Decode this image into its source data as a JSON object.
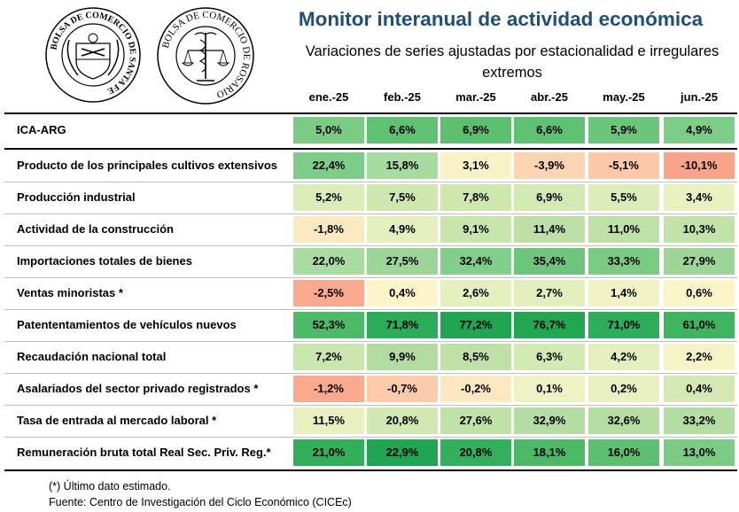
{
  "logos": {
    "santafe": {
      "ring_text": "BOLSA DE COMERCIO DE SANTA FE"
    },
    "rosario": {
      "ring_text": "BOLSA DE COMERCIO DE ROSARIO"
    }
  },
  "header": {
    "title": "Monitor interanual de actividad económica",
    "subtitle_line1": "Variaciones de series ajustadas por estacionalidad e irregulares",
    "subtitle_line2": "extremos"
  },
  "table": {
    "months": [
      "ene.-25",
      "feb.-25",
      "mar.-25",
      "abr.-25",
      "may.-25",
      "jun.-25"
    ],
    "rows": [
      {
        "label": "ICA-ARG",
        "values": [
          "5,0%",
          "6,6%",
          "6,9%",
          "6,6%",
          "5,9%",
          "4,9%"
        ],
        "colors": [
          "#7acc85",
          "#5fc172",
          "#5bbf6f",
          "#5fc172",
          "#6bc67b",
          "#7ccd87"
        ]
      },
      {
        "label": "Producto de los principales cultivos extensivos",
        "values": [
          "22,4%",
          "15,8%",
          "3,1%",
          "-3,9%",
          "-5,1%",
          "-10,1%"
        ],
        "colors": [
          "#7ccd87",
          "#a7dc9f",
          "#f7f3c6",
          "#fcd4b2",
          "#fcc8a8",
          "#f9a488"
        ]
      },
      {
        "label": "Producción industrial",
        "values": [
          "5,2%",
          "7,5%",
          "7,8%",
          "6,9%",
          "5,5%",
          "3,4%"
        ],
        "colors": [
          "#dcecb9",
          "#cde7ad",
          "#cde7ad",
          "#d2e9b1",
          "#dcecb9",
          "#eaf1c1"
        ]
      },
      {
        "label": "Actividad de la construcción",
        "values": [
          "-1,8%",
          "4,9%",
          "9,1%",
          "11,4%",
          "11,0%",
          "10,3%"
        ],
        "colors": [
          "#fde9c0",
          "#e3efbc",
          "#c8e5ab",
          "#bce0a6",
          "#bde1a7",
          "#c1e2a8"
        ]
      },
      {
        "label": "Importaciones totales de bienes",
        "values": [
          "22,0%",
          "27,5%",
          "32,4%",
          "35,4%",
          "33,3%",
          "27,9%"
        ],
        "colors": [
          "#a9dca0",
          "#9bd697",
          "#81cf8a",
          "#6dc67c",
          "#7acb84",
          "#9bd697"
        ]
      },
      {
        "label": "Ventas minoristas *",
        "values": [
          "-2,5%",
          "0,4%",
          "2,6%",
          "2,7%",
          "1,4%",
          "0,6%"
        ],
        "colors": [
          "#f9a98c",
          "#fdf5c8",
          "#e4efbd",
          "#e2eebb",
          "#f2f3c4",
          "#fbf4c7"
        ]
      },
      {
        "label": "Patententamientos de vehículos nuevos",
        "values": [
          "52,3%",
          "71,8%",
          "77,2%",
          "76,7%",
          "71,0%",
          "61,0%"
        ],
        "colors": [
          "#4cbb67",
          "#2aac58",
          "#1fa451",
          "#21a652",
          "#2bad59",
          "#3db45f"
        ]
      },
      {
        "label": "Recaudación nacional total",
        "values": [
          "7,2%",
          "9,9%",
          "8,5%",
          "6,3%",
          "4,2%",
          "2,2%"
        ],
        "colors": [
          "#cbe6ad",
          "#b2dc9f",
          "#bfe1a6",
          "#d3e9b2",
          "#e4efbd",
          "#f5f4c6"
        ]
      },
      {
        "label": "Asalariados del sector privado registrados *",
        "values": [
          "-1,2%",
          "-0,7%",
          "-0,2%",
          "0,1%",
          "0,2%",
          "0,4%"
        ],
        "colors": [
          "#f9a98c",
          "#fccbaa",
          "#fde8c0",
          "#eef2c2",
          "#e9f0c0",
          "#d3e9b1"
        ]
      },
      {
        "label": "Tasa de entrada al mercado laboral *",
        "values": [
          "11,5%",
          "20,8%",
          "27,6%",
          "32,9%",
          "32,6%",
          "33,2%"
        ],
        "colors": [
          "#e9f0c0",
          "#d1e8b0",
          "#c0e2a8",
          "#b3dda2",
          "#b4dea2",
          "#b3dda2"
        ]
      },
      {
        "label": "Remuneración bruta total Real Sec. Priv. Reg.*",
        "values": [
          "21,0%",
          "22,9%",
          "20,8%",
          "18,1%",
          "16,0%",
          "13,0%"
        ],
        "colors": [
          "#31af5a",
          "#1fa451",
          "#33b05b",
          "#4cb967",
          "#5cc070",
          "#7acb84"
        ]
      }
    ]
  },
  "footnotes": {
    "estimated": "(*) Último dato estimado.",
    "source": "Fuente: Centro de Investigación del Ciclo Económico (CICEc)"
  }
}
